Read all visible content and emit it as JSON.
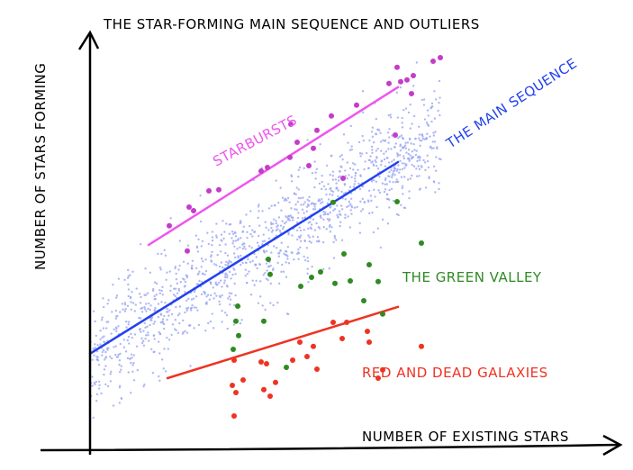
{
  "chart_data": {
    "type": "scatter",
    "title": "THE STAR-FORMING MAIN SEQUENCE AND OUTLIERS",
    "xlabel": "NUMBER OF EXISTING STARS",
    "ylabel": "NUMBER OF STARS FORMING",
    "xlim": [
      0,
      11.6
    ],
    "ylim": [
      0,
      12
    ],
    "grid": false,
    "annotations": {
      "starbursts": "STARBURSTS",
      "main_sequence": "THE MAIN SEQUENCE",
      "green_valley": "THE GREEN VALLEY",
      "red_dead": "RED AND DEAD GALAXIES"
    },
    "colors": {
      "axis": "#000000",
      "cloud": "#9aa6f2",
      "main_line": "#2241ee",
      "starburst_line": "#ee55ee",
      "starburst_points": "#c43cc9",
      "green_points": "#2e8b22",
      "green_text": "#2e8b22",
      "red": "#ee3322"
    },
    "lines": {
      "main_sequence": [
        [
          0,
          2.68
        ],
        [
          6.84,
          8.0
        ]
      ],
      "starbursts": [
        [
          1.3,
          5.7
        ],
        [
          6.84,
          10.08
        ]
      ],
      "red_dead": [
        [
          1.72,
          2.0
        ],
        [
          6.84,
          3.98
        ]
      ]
    },
    "main_sequence_cloud": {
      "n": 1300,
      "x_range": [
        0,
        7.8
      ],
      "slope": 0.778,
      "intercept": 2.68,
      "scatter_sd": 0.75,
      "seed": 7
    },
    "series": [
      {
        "name": "starbursts",
        "points": [
          [
            1.76,
            6.23
          ],
          [
            2.2,
            6.75
          ],
          [
            2.3,
            6.65
          ],
          [
            2.64,
            7.2
          ],
          [
            2.86,
            7.23
          ],
          [
            2.16,
            5.53
          ],
          [
            3.8,
            7.75
          ],
          [
            3.94,
            7.85
          ],
          [
            4.44,
            8.13
          ],
          [
            4.6,
            8.55
          ],
          [
            4.96,
            8.38
          ],
          [
            5.04,
            8.88
          ],
          [
            5.36,
            9.28
          ],
          [
            5.62,
            7.55
          ],
          [
            5.92,
            9.58
          ],
          [
            6.64,
            10.18
          ],
          [
            6.82,
            10.63
          ],
          [
            6.9,
            10.23
          ],
          [
            7.04,
            10.28
          ],
          [
            7.14,
            9.9
          ],
          [
            7.18,
            10.4
          ],
          [
            7.62,
            10.8
          ],
          [
            7.78,
            10.9
          ],
          [
            6.78,
            8.75
          ],
          [
            4.86,
            7.9
          ],
          [
            4.46,
            9.05
          ]
        ]
      },
      {
        "name": "green_valley",
        "points": [
          [
            5.4,
            6.88
          ],
          [
            6.82,
            6.9
          ],
          [
            7.36,
            5.75
          ],
          [
            3.96,
            5.3
          ],
          [
            4.0,
            4.88
          ],
          [
            3.28,
            4.0
          ],
          [
            3.24,
            3.58
          ],
          [
            3.3,
            3.18
          ],
          [
            3.18,
            2.8
          ],
          [
            3.86,
            3.58
          ],
          [
            4.68,
            4.55
          ],
          [
            4.92,
            4.8
          ],
          [
            5.12,
            4.95
          ],
          [
            5.44,
            4.63
          ],
          [
            5.64,
            5.45
          ],
          [
            5.78,
            4.7
          ],
          [
            6.2,
            5.15
          ],
          [
            6.4,
            4.68
          ],
          [
            6.08,
            4.15
          ],
          [
            4.36,
            2.3
          ],
          [
            6.5,
            3.78
          ]
        ]
      },
      {
        "name": "red_and_dead",
        "points": [
          [
            3.2,
            2.5
          ],
          [
            3.16,
            1.8
          ],
          [
            3.24,
            1.6
          ],
          [
            3.2,
            0.95
          ],
          [
            3.4,
            1.95
          ],
          [
            3.8,
            2.45
          ],
          [
            3.92,
            2.4
          ],
          [
            3.86,
            1.68
          ],
          [
            4.0,
            1.5
          ],
          [
            4.12,
            1.88
          ],
          [
            4.5,
            2.5
          ],
          [
            4.66,
            3.0
          ],
          [
            4.82,
            2.6
          ],
          [
            4.96,
            2.88
          ],
          [
            5.04,
            2.25
          ],
          [
            5.4,
            3.55
          ],
          [
            5.6,
            3.1
          ],
          [
            5.7,
            3.55
          ],
          [
            6.16,
            3.3
          ],
          [
            6.2,
            3.0
          ],
          [
            6.5,
            2.23
          ],
          [
            6.4,
            2.0
          ],
          [
            7.36,
            2.88
          ]
        ]
      }
    ]
  }
}
